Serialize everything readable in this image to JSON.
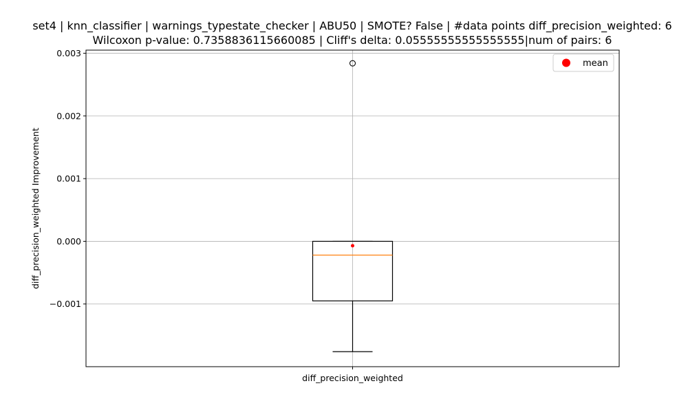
{
  "chart_data": {
    "type": "box",
    "title_line1": "set4 | knn_classifier | warnings_typestate_checker | ABU50 | SMOTE? False | #data points diff_precision_weighted: 6",
    "title_line2": "Wilcoxon p-value: 0.7358836115660085 | Cliff's delta: 0.05555555555555555|num of pairs: 6",
    "xlabel": "",
    "ylabel": "diff_precision_weighted Improvement",
    "categories": [
      "diff_precision_weighted"
    ],
    "ylim": [
      -0.002,
      0.00305
    ],
    "yticks": [
      -0.001,
      0.0,
      0.001,
      0.002,
      0.003
    ],
    "ytick_labels": [
      "−0.001",
      "0.000",
      "0.001",
      "0.002",
      "0.003"
    ],
    "grid": true,
    "legend": {
      "placement": "top-right",
      "entries": [
        {
          "label": "mean",
          "color": "#ff0000"
        }
      ]
    },
    "boxes": [
      {
        "name": "diff_precision_weighted",
        "whisker_low": -0.00176,
        "q1": -0.00095,
        "median": -0.00022,
        "q3": 0.0,
        "whisker_high": 0.0,
        "mean": -7e-05,
        "outliers": [
          0.00284
        ]
      }
    ],
    "colors": {
      "box": "#000000",
      "median": "#ff7f0e",
      "mean": "#ff0000",
      "grid": "#b0b0b0"
    }
  }
}
